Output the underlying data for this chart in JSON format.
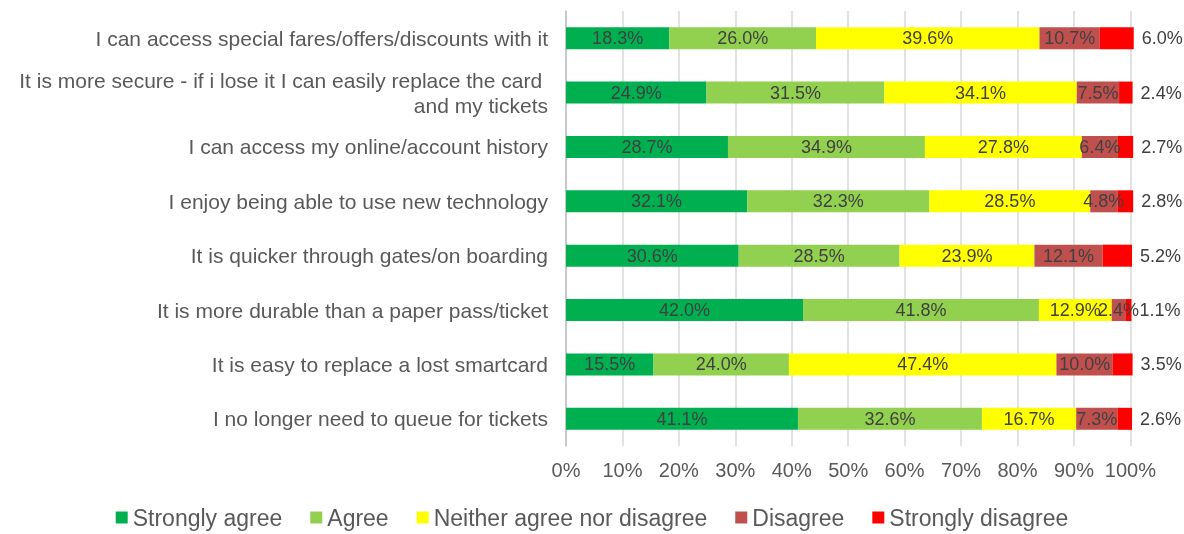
{
  "chart_data": {
    "type": "bar",
    "orientation": "horizontal",
    "stacked": true,
    "categories": [
      "I can access special fares/offers/discounts with it",
      "It is more secure - if i lose it I can easily replace the card and my tickets",
      "I can access my online/account history",
      "I enjoy being able to use new technology",
      "It is quicker through gates/on boarding",
      "It is more durable than a paper pass/ticket",
      "It is easy to replace a lost smartcard",
      "I no longer need to queue for tickets"
    ],
    "series": [
      {
        "name": "Strongly agree",
        "color": "#00b050",
        "values": [
          18.3,
          24.9,
          28.7,
          32.1,
          30.6,
          42.0,
          15.5,
          41.1
        ],
        "value_labels": [
          "18.3%",
          "24.9%",
          "28.7%",
          "32.1%",
          "30.6%",
          "42.0%",
          "15.5%",
          "41.1%"
        ]
      },
      {
        "name": "Agree",
        "color": "#92d050",
        "values": [
          26.0,
          31.5,
          34.9,
          32.3,
          28.5,
          41.8,
          24.0,
          32.6
        ],
        "value_labels": [
          "26.0%",
          "31.5%",
          "34.9%",
          "32.3%",
          "28.5%",
          "41.8%",
          "24.0%",
          "32.6%"
        ]
      },
      {
        "name": "Neither agree nor disagree",
        "color": "#ffff00",
        "values": [
          39.6,
          34.1,
          27.8,
          28.5,
          23.9,
          12.9,
          47.4,
          16.7
        ],
        "value_labels": [
          "39.6%",
          "34.1%",
          "27.8%",
          "28.5%",
          "23.9%",
          "12.9%",
          "47.4%",
          "16.7%"
        ]
      },
      {
        "name": "Disagree",
        "color": "#c0504d",
        "values": [
          10.7,
          7.5,
          6.4,
          4.8,
          12.1,
          2.4,
          10.0,
          7.3
        ],
        "value_labels": [
          "10.7%",
          "7.5%",
          "6.4%",
          "4.8%",
          "12.1%",
          "2.4%",
          "10.0%",
          "7.3%"
        ]
      },
      {
        "name": "Strongly disagree",
        "color": "#ff0000",
        "values": [
          6.0,
          2.4,
          2.7,
          2.8,
          5.2,
          1.1,
          3.5,
          2.6
        ],
        "value_labels": [
          "6.0%",
          "2.4%",
          "2.7%",
          "2.8%",
          "5.2%",
          "1.1%",
          "3.5%",
          "2.6%"
        ]
      }
    ],
    "xlim": [
      0,
      101
    ],
    "xticks": [
      {
        "value": 0,
        "label": "0%"
      },
      {
        "value": 10,
        "label": "10%"
      },
      {
        "value": 20,
        "label": "20%"
      },
      {
        "value": 30,
        "label": "30%"
      },
      {
        "value": 40,
        "label": "40%"
      },
      {
        "value": 50,
        "label": "50%"
      },
      {
        "value": 60,
        "label": "60%"
      },
      {
        "value": 70,
        "label": "70%"
      },
      {
        "value": 80,
        "label": "80%"
      },
      {
        "value": 90,
        "label": "90%"
      },
      {
        "value": 100,
        "label": "100%"
      }
    ],
    "grid": "x",
    "legend": "bottom"
  }
}
